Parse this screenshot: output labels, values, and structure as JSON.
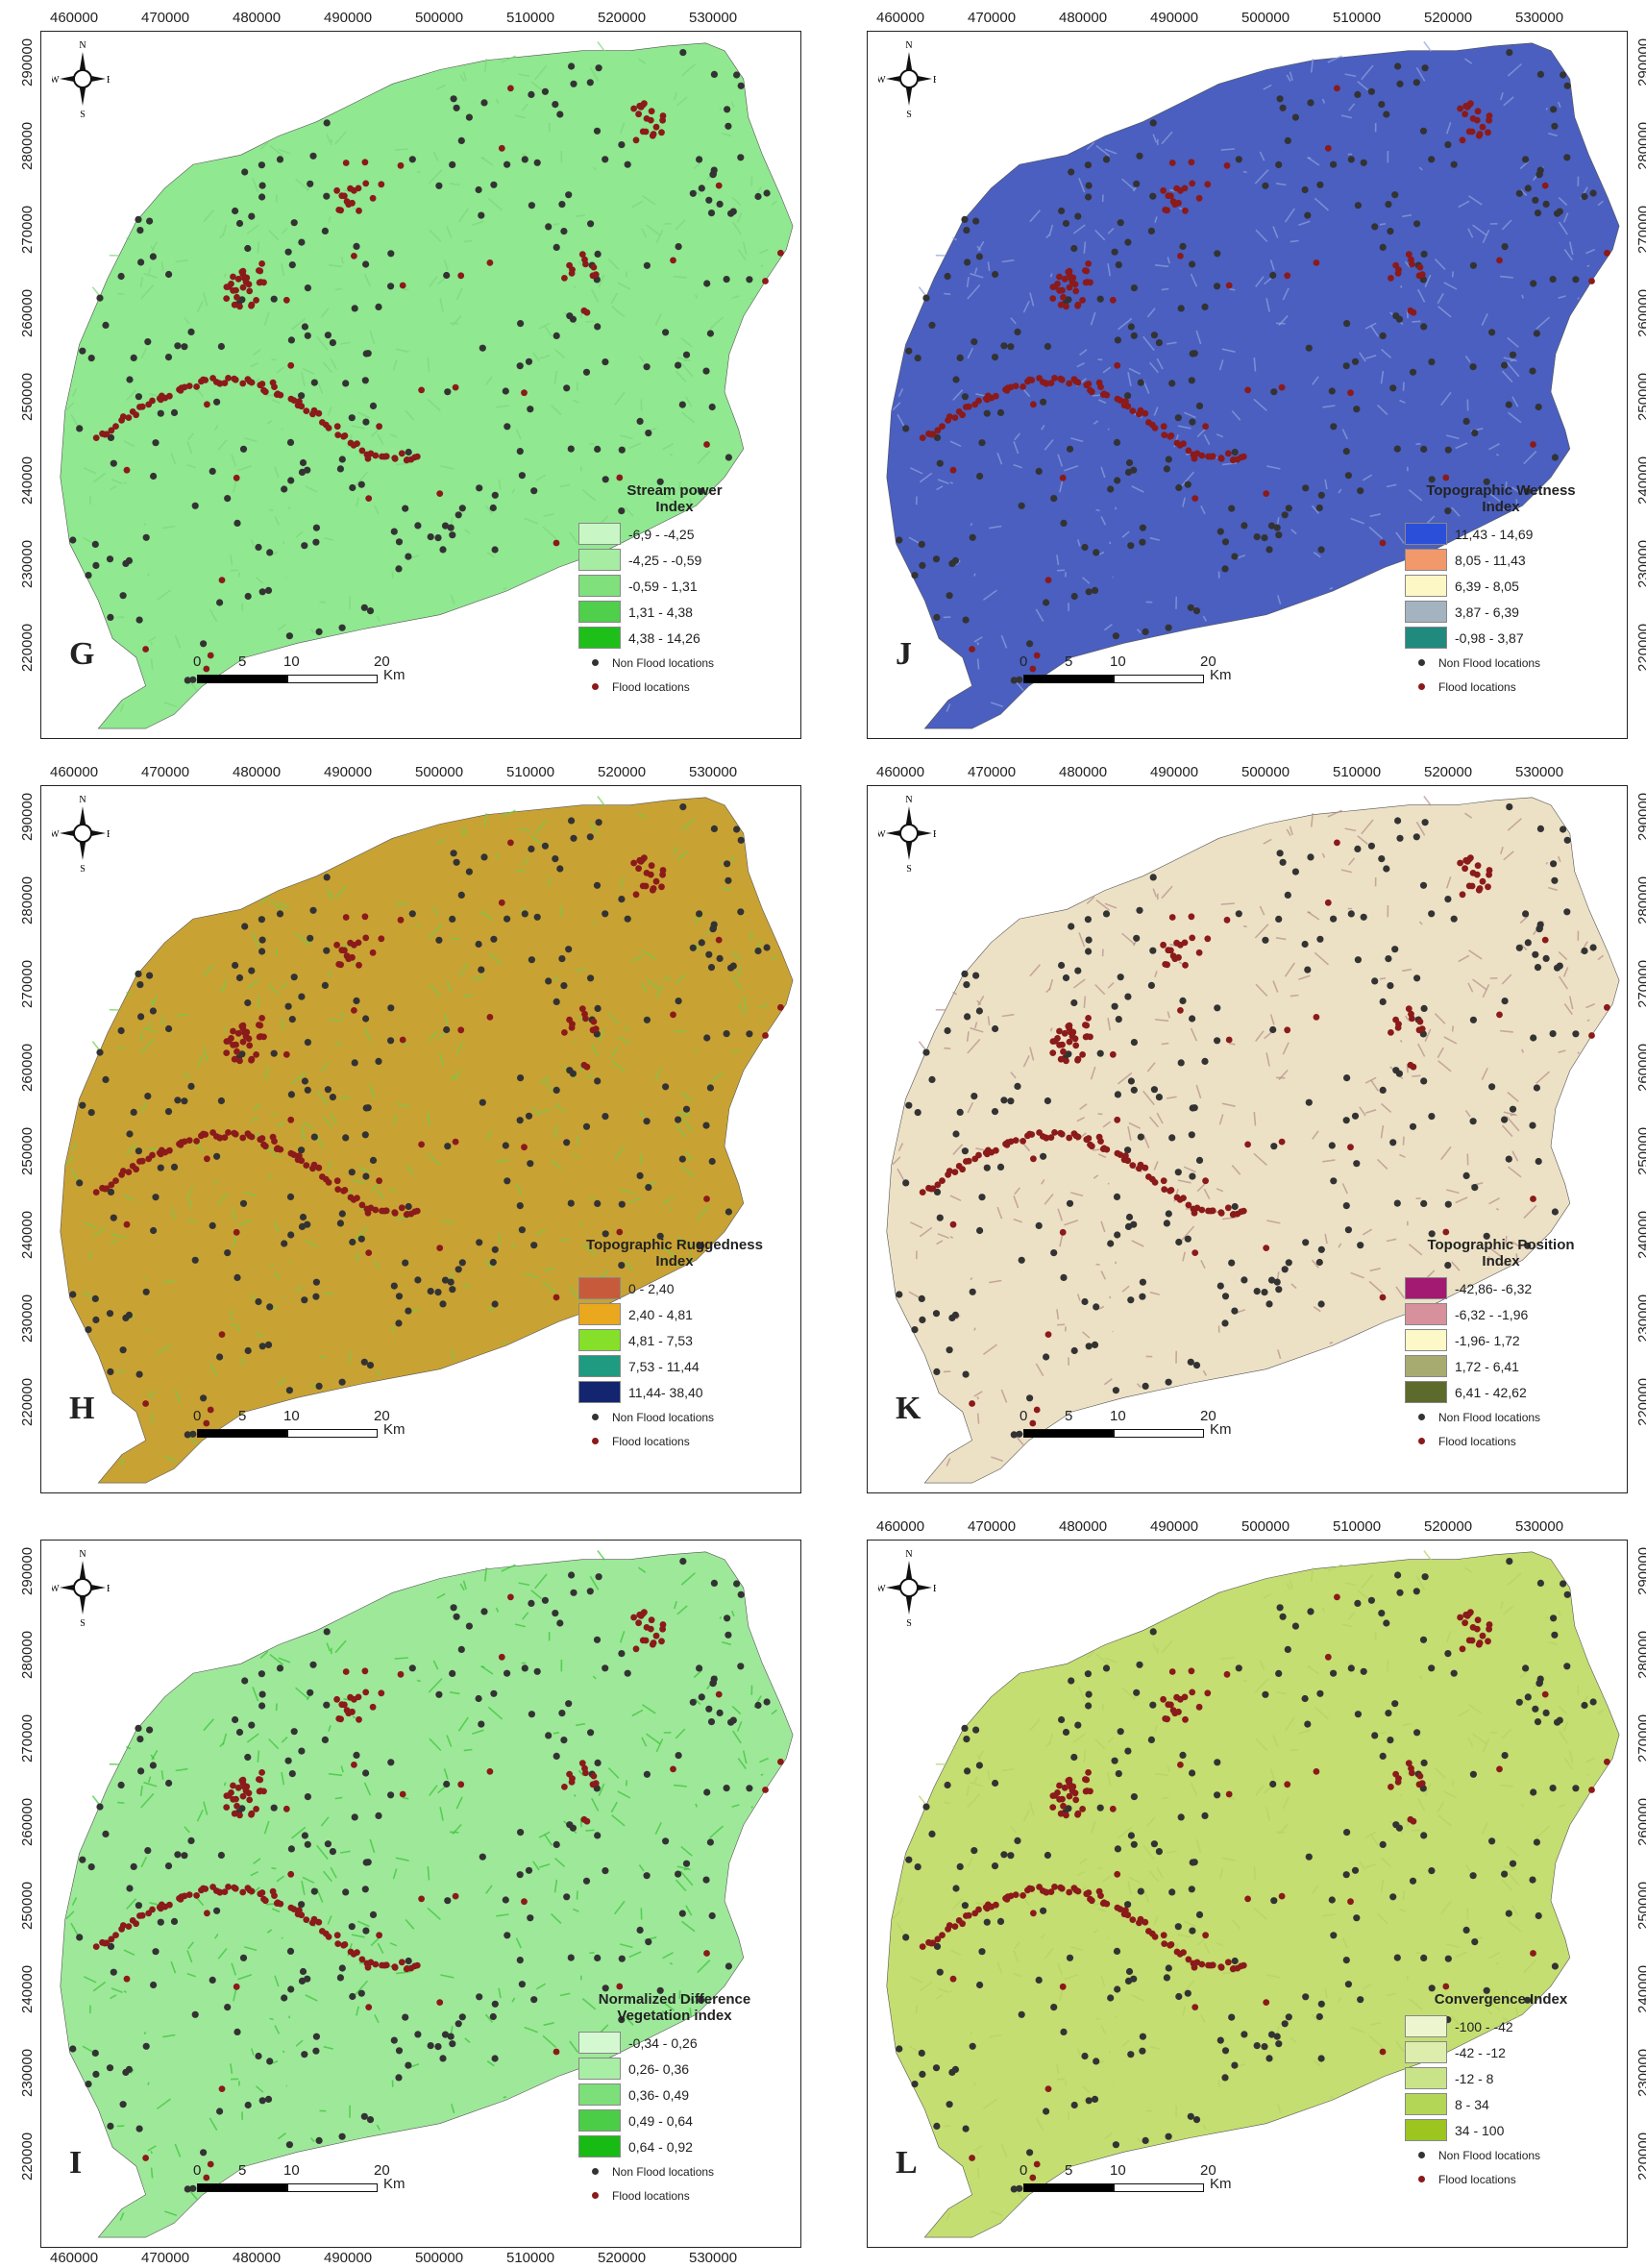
{
  "x_ticks": [
    "460000",
    "470000",
    "480000",
    "490000",
    "500000",
    "510000",
    "520000",
    "530000"
  ],
  "y_ticks": [
    "290000",
    "280000",
    "270000",
    "260000",
    "250000",
    "240000",
    "230000",
    "220000"
  ],
  "compass": {
    "n": "N",
    "s": "S",
    "e": "E",
    "w": "W"
  },
  "scale_bar": {
    "labels": [
      "0",
      "5",
      "10",
      "20"
    ],
    "unit": "Km"
  },
  "point_legend": {
    "non_flood": "Non Flood locations",
    "flood": "Flood locations",
    "non_flood_color": "#333333",
    "flood_color": "#8b1a1a"
  },
  "panels": [
    {
      "letter": "G",
      "fill": "#90e890",
      "texture": "#7ed67e",
      "legend_title": "Stream power\nIndex",
      "classes": [
        {
          "label": "-6,9 - -4,25",
          "color": "#c8f7c5"
        },
        {
          "label": "-4,25 - -0,59",
          "color": "#a6eda3"
        },
        {
          "label": "-0,59 - 1,31",
          "color": "#7fe07c"
        },
        {
          "label": "1,31 - 4,38",
          "color": "#4fcf4b"
        },
        {
          "label": "4,38 - 14,26",
          "color": "#1fbf1a"
        }
      ]
    },
    {
      "letter": "J",
      "fill": "#4a5fc0",
      "texture": "#8fa2dd",
      "legend_title": "Topographic Wetness\nIndex",
      "classes": [
        {
          "label": "11,43 - 14,69",
          "color": "#2b4fd8"
        },
        {
          "label": "8,05 - 11,43",
          "color": "#f2996c"
        },
        {
          "label": "6,39 - 8,05",
          "color": "#fdf7c6"
        },
        {
          "label": "3,87 - 6,39",
          "color": "#a3b3c0"
        },
        {
          "label": "-0,98 - 3,87",
          "color": "#208a7e"
        }
      ]
    },
    {
      "letter": "H",
      "fill": "#c9a234",
      "texture": "#6fcf4a",
      "legend_title": "Topographic Ruggedness\nIndex",
      "classes": [
        {
          "label": "0 - 2,40",
          "color": "#c85a3c"
        },
        {
          "label": "2,40 - 4,81",
          "color": "#eaa81f"
        },
        {
          "label": "4,81 - 7,53",
          "color": "#86e02a"
        },
        {
          "label": "7,53 - 11,44",
          "color": "#1e9b80"
        },
        {
          "label": "11,44- 38,40",
          "color": "#12256e"
        }
      ]
    },
    {
      "letter": "K",
      "fill": "#ede1c5",
      "texture": "#b58f8c",
      "legend_title": "Topographic Position\nIndex",
      "classes": [
        {
          "label": "-42,86- -6,32",
          "color": "#a21a72"
        },
        {
          "label": "-6,32 - -1,96",
          "color": "#d7919c"
        },
        {
          "label": "-1,96- 1,72",
          "color": "#fdf8c8"
        },
        {
          "label": "1,72 - 6,41",
          "color": "#a8ab70"
        },
        {
          "label": "6,41 - 42,62",
          "color": "#5c6a2c"
        }
      ]
    },
    {
      "letter": "I",
      "fill": "#9ee89a",
      "texture": "#37c533",
      "legend_title": "Normalized Difference\nVegetation index",
      "classes": [
        {
          "label": "-0,34 - 0,26",
          "color": "#d4f9d1"
        },
        {
          "label": "0,26- 0,36",
          "color": "#a9eea5"
        },
        {
          "label": "0,36- 0,49",
          "color": "#7ddf79"
        },
        {
          "label": "0,49 - 0,64",
          "color": "#4ccd48"
        },
        {
          "label": "0,64 - 0,92",
          "color": "#18bb14"
        }
      ]
    },
    {
      "letter": "L",
      "fill": "#c4de71",
      "texture": "#b6d365",
      "legend_title": "Convergence Index",
      "classes": [
        {
          "label": "-100 - -42",
          "color": "#edf5cf"
        },
        {
          "label": "-42 - -12",
          "color": "#dcedad"
        },
        {
          "label": "-12 - 8",
          "color": "#c9e389"
        },
        {
          "label": "8 - 34",
          "color": "#b3d656"
        },
        {
          "label": "34 - 100",
          "color": "#9cc520"
        }
      ]
    }
  ]
}
